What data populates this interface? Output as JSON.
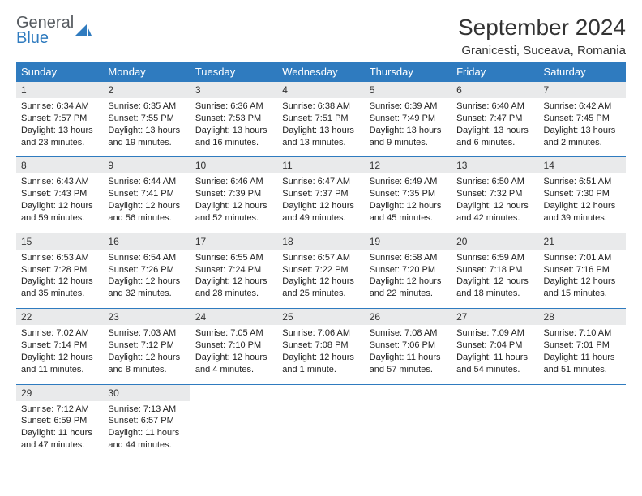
{
  "logo": {
    "general": "General",
    "blue": "Blue"
  },
  "title": "September 2024",
  "location": "Granicesti, Suceava, Romania",
  "colors": {
    "header_bg": "#2f7bbf",
    "header_text": "#ffffff",
    "daynum_bg": "#e9eaeb",
    "border": "#2f7bbf",
    "logo_gray": "#555a5f",
    "logo_blue": "#2f7bbf",
    "page_bg": "#ffffff",
    "body_text": "#222222"
  },
  "weekdays": [
    "Sunday",
    "Monday",
    "Tuesday",
    "Wednesday",
    "Thursday",
    "Friday",
    "Saturday"
  ],
  "weeks": [
    [
      {
        "n": "1",
        "sr": "Sunrise: 6:34 AM",
        "ss": "Sunset: 7:57 PM",
        "dl": "Daylight: 13 hours and 23 minutes."
      },
      {
        "n": "2",
        "sr": "Sunrise: 6:35 AM",
        "ss": "Sunset: 7:55 PM",
        "dl": "Daylight: 13 hours and 19 minutes."
      },
      {
        "n": "3",
        "sr": "Sunrise: 6:36 AM",
        "ss": "Sunset: 7:53 PM",
        "dl": "Daylight: 13 hours and 16 minutes."
      },
      {
        "n": "4",
        "sr": "Sunrise: 6:38 AM",
        "ss": "Sunset: 7:51 PM",
        "dl": "Daylight: 13 hours and 13 minutes."
      },
      {
        "n": "5",
        "sr": "Sunrise: 6:39 AM",
        "ss": "Sunset: 7:49 PM",
        "dl": "Daylight: 13 hours and 9 minutes."
      },
      {
        "n": "6",
        "sr": "Sunrise: 6:40 AM",
        "ss": "Sunset: 7:47 PM",
        "dl": "Daylight: 13 hours and 6 minutes."
      },
      {
        "n": "7",
        "sr": "Sunrise: 6:42 AM",
        "ss": "Sunset: 7:45 PM",
        "dl": "Daylight: 13 hours and 2 minutes."
      }
    ],
    [
      {
        "n": "8",
        "sr": "Sunrise: 6:43 AM",
        "ss": "Sunset: 7:43 PM",
        "dl": "Daylight: 12 hours and 59 minutes."
      },
      {
        "n": "9",
        "sr": "Sunrise: 6:44 AM",
        "ss": "Sunset: 7:41 PM",
        "dl": "Daylight: 12 hours and 56 minutes."
      },
      {
        "n": "10",
        "sr": "Sunrise: 6:46 AM",
        "ss": "Sunset: 7:39 PM",
        "dl": "Daylight: 12 hours and 52 minutes."
      },
      {
        "n": "11",
        "sr": "Sunrise: 6:47 AM",
        "ss": "Sunset: 7:37 PM",
        "dl": "Daylight: 12 hours and 49 minutes."
      },
      {
        "n": "12",
        "sr": "Sunrise: 6:49 AM",
        "ss": "Sunset: 7:35 PM",
        "dl": "Daylight: 12 hours and 45 minutes."
      },
      {
        "n": "13",
        "sr": "Sunrise: 6:50 AM",
        "ss": "Sunset: 7:32 PM",
        "dl": "Daylight: 12 hours and 42 minutes."
      },
      {
        "n": "14",
        "sr": "Sunrise: 6:51 AM",
        "ss": "Sunset: 7:30 PM",
        "dl": "Daylight: 12 hours and 39 minutes."
      }
    ],
    [
      {
        "n": "15",
        "sr": "Sunrise: 6:53 AM",
        "ss": "Sunset: 7:28 PM",
        "dl": "Daylight: 12 hours and 35 minutes."
      },
      {
        "n": "16",
        "sr": "Sunrise: 6:54 AM",
        "ss": "Sunset: 7:26 PM",
        "dl": "Daylight: 12 hours and 32 minutes."
      },
      {
        "n": "17",
        "sr": "Sunrise: 6:55 AM",
        "ss": "Sunset: 7:24 PM",
        "dl": "Daylight: 12 hours and 28 minutes."
      },
      {
        "n": "18",
        "sr": "Sunrise: 6:57 AM",
        "ss": "Sunset: 7:22 PM",
        "dl": "Daylight: 12 hours and 25 minutes."
      },
      {
        "n": "19",
        "sr": "Sunrise: 6:58 AM",
        "ss": "Sunset: 7:20 PM",
        "dl": "Daylight: 12 hours and 22 minutes."
      },
      {
        "n": "20",
        "sr": "Sunrise: 6:59 AM",
        "ss": "Sunset: 7:18 PM",
        "dl": "Daylight: 12 hours and 18 minutes."
      },
      {
        "n": "21",
        "sr": "Sunrise: 7:01 AM",
        "ss": "Sunset: 7:16 PM",
        "dl": "Daylight: 12 hours and 15 minutes."
      }
    ],
    [
      {
        "n": "22",
        "sr": "Sunrise: 7:02 AM",
        "ss": "Sunset: 7:14 PM",
        "dl": "Daylight: 12 hours and 11 minutes."
      },
      {
        "n": "23",
        "sr": "Sunrise: 7:03 AM",
        "ss": "Sunset: 7:12 PM",
        "dl": "Daylight: 12 hours and 8 minutes."
      },
      {
        "n": "24",
        "sr": "Sunrise: 7:05 AM",
        "ss": "Sunset: 7:10 PM",
        "dl": "Daylight: 12 hours and 4 minutes."
      },
      {
        "n": "25",
        "sr": "Sunrise: 7:06 AM",
        "ss": "Sunset: 7:08 PM",
        "dl": "Daylight: 12 hours and 1 minute."
      },
      {
        "n": "26",
        "sr": "Sunrise: 7:08 AM",
        "ss": "Sunset: 7:06 PM",
        "dl": "Daylight: 11 hours and 57 minutes."
      },
      {
        "n": "27",
        "sr": "Sunrise: 7:09 AM",
        "ss": "Sunset: 7:04 PM",
        "dl": "Daylight: 11 hours and 54 minutes."
      },
      {
        "n": "28",
        "sr": "Sunrise: 7:10 AM",
        "ss": "Sunset: 7:01 PM",
        "dl": "Daylight: 11 hours and 51 minutes."
      }
    ],
    [
      {
        "n": "29",
        "sr": "Sunrise: 7:12 AM",
        "ss": "Sunset: 6:59 PM",
        "dl": "Daylight: 11 hours and 47 minutes."
      },
      {
        "n": "30",
        "sr": "Sunrise: 7:13 AM",
        "ss": "Sunset: 6:57 PM",
        "dl": "Daylight: 11 hours and 44 minutes."
      },
      null,
      null,
      null,
      null,
      null
    ]
  ]
}
